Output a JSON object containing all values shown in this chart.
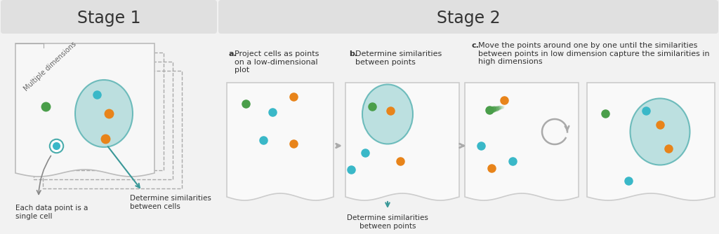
{
  "bg_color": "#f2f2f2",
  "stage1_bg": "#e0e0e0",
  "stage2_bg": "#e0e0e0",
  "teal_circle_fill": "#a8d8d8",
  "teal_circle_edge": "#4aacac",
  "orange_dot": "#e8841a",
  "green_dot": "#4a9e4a",
  "cyan_dot": "#3ab8c8",
  "teal_arrow": "#3a9898",
  "gray_arrow": "#aaaaaa",
  "panel_edge": "#cccccc",
  "dashed_line": "#aaaaaa",
  "stage1_title": "Stage 1",
  "stage2_title": "Stage 2",
  "label_a": "a.",
  "label_b": "b.",
  "label_c": "c.",
  "text_a": "Project cells as points\non a low-dimensional\nplot",
  "text_b": "Determine similarities\nbetween points",
  "text_c": "Move the points around one by one until the similarities\nbetween points in low dimension capture the similarities in\nhigh dimensions",
  "text_each_cell": "Each data point is a\nsingle cell",
  "text_sim_cells": "Determine similarities\nbetween cells",
  "text_multiple_dim": "Multiple dimensions"
}
